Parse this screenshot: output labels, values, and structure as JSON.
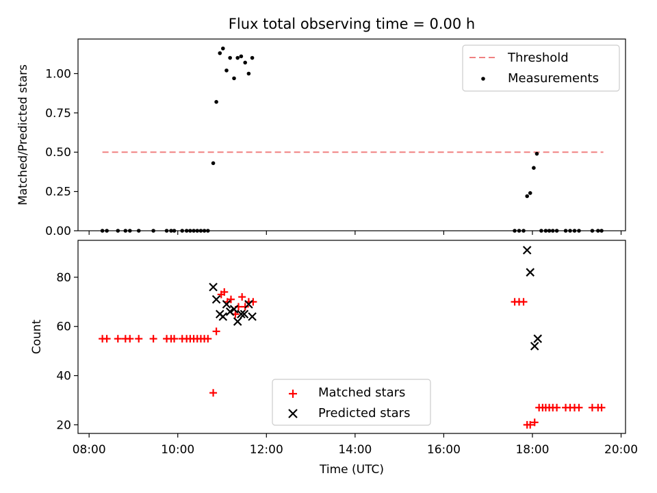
{
  "chart_data": [
    {
      "type": "scatter",
      "title": "Flux total observing time = 0.00 h",
      "xlabel": "",
      "ylabel": "Matched/Predicted stars",
      "ylim": [
        0,
        1.22
      ],
      "xlim": [
        7.75,
        20.1
      ],
      "yticks": [
        "0.00",
        "0.25",
        "0.50",
        "0.75",
        "1.00"
      ],
      "legend_position": "top-right",
      "grid": false,
      "threshold": {
        "name": "Threshold",
        "value": 0.5,
        "x_start": 8.3,
        "x_end": 19.6,
        "color": "#f08080"
      },
      "series": [
        {
          "name": "Measurements",
          "color": "#000000",
          "marker": "dot",
          "x": [
            8.3,
            8.4,
            8.65,
            8.82,
            8.92,
            9.12,
            9.45,
            9.75,
            9.85,
            9.92,
            10.1,
            10.2,
            10.28,
            10.36,
            10.44,
            10.52,
            10.6,
            10.68,
            10.8,
            10.87,
            10.95,
            11.02,
            11.1,
            11.18,
            11.27,
            11.35,
            11.43,
            11.52,
            11.6,
            11.68,
            17.6,
            17.7,
            17.8,
            17.88,
            17.95,
            18.03,
            18.1,
            18.2,
            18.3,
            18.38,
            18.46,
            18.55,
            18.75,
            18.85,
            18.95,
            19.05,
            19.35,
            19.48,
            19.56
          ],
          "y": [
            0,
            0,
            0,
            0,
            0,
            0,
            0,
            0,
            0,
            0,
            0,
            0,
            0,
            0,
            0,
            0,
            0,
            0,
            0.43,
            0.82,
            1.13,
            1.16,
            1.02,
            1.1,
            0.97,
            1.1,
            1.11,
            1.07,
            1.0,
            1.1,
            0,
            0,
            0,
            0.22,
            0.24,
            0.4,
            0.49,
            0,
            0,
            0,
            0,
            0,
            0,
            0,
            0,
            0,
            0,
            0,
            0
          ]
        }
      ]
    },
    {
      "type": "scatter",
      "title": "",
      "xlabel": "Time (UTC)",
      "ylabel": "Count",
      "ylim": [
        16.5,
        95
      ],
      "xlim": [
        7.75,
        20.1
      ],
      "yticks": [
        "20",
        "40",
        "60",
        "80"
      ],
      "xticks": [
        "08:00",
        "10:00",
        "12:00",
        "14:00",
        "16:00",
        "18:00",
        "20:00"
      ],
      "legend_position": "lower-center",
      "grid": false,
      "series": [
        {
          "name": "Matched stars",
          "color": "#ff0000",
          "marker": "plus",
          "x": [
            8.3,
            8.4,
            8.65,
            8.82,
            8.92,
            9.12,
            9.45,
            9.75,
            9.85,
            9.92,
            10.1,
            10.2,
            10.28,
            10.36,
            10.44,
            10.52,
            10.6,
            10.68,
            10.8,
            10.87,
            10.98,
            11.05,
            11.12,
            11.2,
            11.3,
            11.37,
            11.45,
            11.52,
            11.6,
            11.7,
            17.6,
            17.7,
            17.8,
            17.88,
            17.95,
            18.05,
            18.15,
            18.23,
            18.3,
            18.38,
            18.46,
            18.55,
            18.75,
            18.85,
            18.95,
            19.05,
            19.35,
            19.48,
            19.56
          ],
          "y": [
            55,
            55,
            55,
            55,
            55,
            55,
            55,
            55,
            55,
            55,
            55,
            55,
            55,
            55,
            55,
            55,
            55,
            55,
            33,
            58,
            73,
            74,
            70,
            71,
            65,
            68,
            72,
            68,
            70,
            70,
            70,
            70,
            70,
            20,
            20,
            21,
            27,
            27,
            27,
            27,
            27,
            27,
            27,
            27,
            27,
            27,
            27,
            27,
            27
          ]
        },
        {
          "name": "Predicted stars",
          "color": "#000000",
          "marker": "x",
          "x": [
            10.8,
            10.87,
            10.95,
            11.02,
            11.1,
            11.18,
            11.27,
            11.35,
            11.43,
            11.5,
            11.6,
            11.68,
            17.88,
            17.95,
            18.05,
            18.12
          ],
          "y": [
            76,
            71,
            65,
            64,
            69,
            66,
            67,
            62,
            65,
            65,
            69,
            64,
            91,
            82,
            52,
            55
          ]
        }
      ]
    }
  ]
}
